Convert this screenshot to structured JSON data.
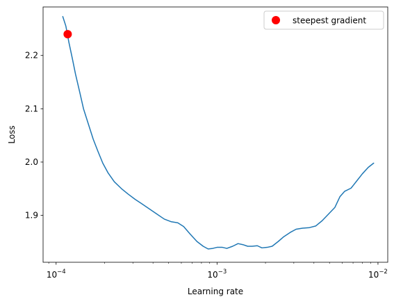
{
  "chart_data": {
    "type": "line",
    "title": "",
    "xlabel": "Learning rate",
    "ylabel": "Loss",
    "xscale": "log",
    "xlim": [
      8.3e-05,
      0.0115
    ],
    "ylim": [
      1.812,
      2.291
    ],
    "grid": false,
    "legend": {
      "position": "top-right",
      "entries": [
        "steepest gradient"
      ]
    },
    "x_ticks": [
      {
        "value": 0.0001,
        "base": "10",
        "exp": "−4"
      },
      {
        "value": 0.001,
        "base": "10",
        "exp": "−3"
      },
      {
        "value": 0.01,
        "base": "10",
        "exp": "−2"
      }
    ],
    "y_ticks": [
      {
        "value": 1.9,
        "label": "1.9"
      },
      {
        "value": 2.0,
        "label": "2.0"
      },
      {
        "value": 2.1,
        "label": "2.1"
      },
      {
        "value": 2.2,
        "label": "2.2"
      }
    ],
    "series": [
      {
        "color": "#1f77b4",
        "x": [
          0.00011,
          0.000115,
          0.00012,
          0.000126,
          0.000132,
          0.00014,
          0.000148,
          0.000158,
          0.00017,
          0.000182,
          0.000195,
          0.00021,
          0.00023,
          0.000255,
          0.00028,
          0.00031,
          0.00034,
          0.00038,
          0.00042,
          0.00047,
          0.00052,
          0.00057,
          0.00062,
          0.00068,
          0.00075,
          0.00082,
          0.00088,
          0.00094,
          0.001,
          0.00108,
          0.00115,
          0.00125,
          0.00135,
          0.00145,
          0.00155,
          0.00165,
          0.00178,
          0.0019,
          0.00205,
          0.0022,
          0.0024,
          0.0026,
          0.00285,
          0.0031,
          0.0034,
          0.00375,
          0.0041,
          0.0045,
          0.00495,
          0.0054,
          0.0058,
          0.0062,
          0.0068,
          0.0074,
          0.008,
          0.0087,
          0.0094
        ],
        "y": [
          2.273,
          2.255,
          2.225,
          2.195,
          2.165,
          2.132,
          2.1,
          2.073,
          2.043,
          2.02,
          1.998,
          1.98,
          1.963,
          1.95,
          1.94,
          1.93,
          1.922,
          1.912,
          1.903,
          1.893,
          1.888,
          1.886,
          1.879,
          1.865,
          1.851,
          1.842,
          1.837,
          1.838,
          1.84,
          1.84,
          1.838,
          1.842,
          1.847,
          1.845,
          1.842,
          1.842,
          1.843,
          1.839,
          1.84,
          1.842,
          1.851,
          1.86,
          1.868,
          1.874,
          1.876,
          1.877,
          1.88,
          1.89,
          1.903,
          1.915,
          1.935,
          1.945,
          1.951,
          1.965,
          1.978,
          1.99,
          1.998
        ]
      }
    ],
    "marker": {
      "name": "steepest gradient",
      "x": 0.000118,
      "y": 2.24,
      "color": "#ff0000"
    }
  }
}
